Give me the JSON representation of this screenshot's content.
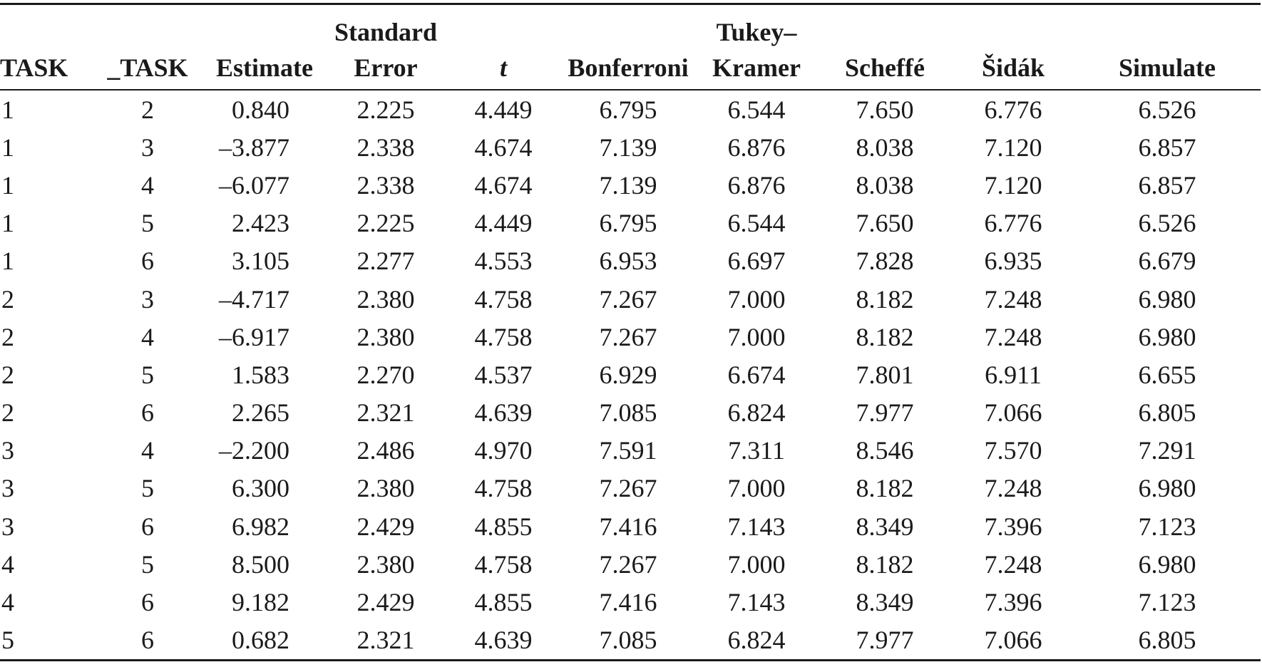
{
  "table": {
    "headers": [
      {
        "line1": "",
        "line2": "TASK"
      },
      {
        "line1": "",
        "line2": "_TASK"
      },
      {
        "line1": "",
        "line2": "Estimate"
      },
      {
        "line1": "Standard",
        "line2": "Error"
      },
      {
        "line1": "",
        "line2": "t"
      },
      {
        "line1": "",
        "line2": "Bonferroni"
      },
      {
        "line1": "Tukey–",
        "line2": "Kramer"
      },
      {
        "line1": "",
        "line2": "Scheffé"
      },
      {
        "line1": "",
        "line2": "Šidák"
      },
      {
        "line1": "",
        "line2": "Simulate"
      }
    ],
    "rows": [
      [
        "1",
        "2",
        "0.840",
        "2.225",
        "4.449",
        "6.795",
        "6.544",
        "7.650",
        "6.776",
        "6.526"
      ],
      [
        "1",
        "3",
        "–3.877",
        "2.338",
        "4.674",
        "7.139",
        "6.876",
        "8.038",
        "7.120",
        "6.857"
      ],
      [
        "1",
        "4",
        "–6.077",
        "2.338",
        "4.674",
        "7.139",
        "6.876",
        "8.038",
        "7.120",
        "6.857"
      ],
      [
        "1",
        "5",
        "2.423",
        "2.225",
        "4.449",
        "6.795",
        "6.544",
        "7.650",
        "6.776",
        "6.526"
      ],
      [
        "1",
        "6",
        "3.105",
        "2.277",
        "4.553",
        "6.953",
        "6.697",
        "7.828",
        "6.935",
        "6.679"
      ],
      [
        "2",
        "3",
        "–4.717",
        "2.380",
        "4.758",
        "7.267",
        "7.000",
        "8.182",
        "7.248",
        "6.980"
      ],
      [
        "2",
        "4",
        "–6.917",
        "2.380",
        "4.758",
        "7.267",
        "7.000",
        "8.182",
        "7.248",
        "6.980"
      ],
      [
        "2",
        "5",
        "1.583",
        "2.270",
        "4.537",
        "6.929",
        "6.674",
        "7.801",
        "6.911",
        "6.655"
      ],
      [
        "2",
        "6",
        "2.265",
        "2.321",
        "4.639",
        "7.085",
        "6.824",
        "7.977",
        "7.066",
        "6.805"
      ],
      [
        "3",
        "4",
        "–2.200",
        "2.486",
        "4.970",
        "7.591",
        "7.311",
        "8.546",
        "7.570",
        "7.291"
      ],
      [
        "3",
        "5",
        "6.300",
        "2.380",
        "4.758",
        "7.267",
        "7.000",
        "8.182",
        "7.248",
        "6.980"
      ],
      [
        "3",
        "6",
        "6.982",
        "2.429",
        "4.855",
        "7.416",
        "7.143",
        "8.349",
        "7.396",
        "7.123"
      ],
      [
        "4",
        "5",
        "8.500",
        "2.380",
        "4.758",
        "7.267",
        "7.000",
        "8.182",
        "7.248",
        "6.980"
      ],
      [
        "4",
        "6",
        "9.182",
        "2.429",
        "4.855",
        "7.416",
        "7.143",
        "8.349",
        "7.396",
        "7.123"
      ],
      [
        "5",
        "6",
        "0.682",
        "2.321",
        "4.639",
        "7.085",
        "6.824",
        "7.977",
        "7.066",
        "6.805"
      ]
    ]
  }
}
